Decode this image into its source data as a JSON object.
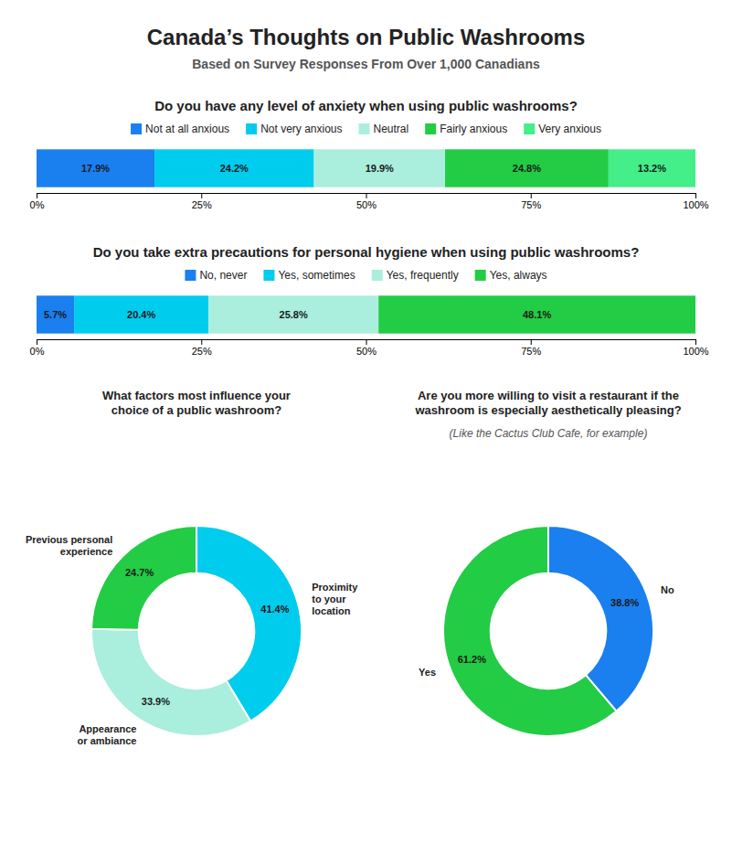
{
  "title": "Canada’s Thoughts on Public Washrooms",
  "subtitle": "Based on Survey Responses From Over 1,000 Canadians",
  "chart_data": [
    {
      "type": "bar",
      "orientation": "horizontal",
      "stacked": true,
      "data_labels": true,
      "title": "Do you have any level of anxiety when using public washrooms?",
      "categories": [
        null
      ],
      "series": [
        {
          "name": "Not at all anxious",
          "color": "#1a7fef",
          "values": [
            17.9
          ],
          "value_labels": [
            "17.9%"
          ]
        },
        {
          "name": "Not very anxious",
          "color": "#00ccee",
          "values": [
            24.2
          ],
          "value_labels": [
            "24.2%"
          ]
        },
        {
          "name": "Neutral",
          "color": "#aaeedd",
          "values": [
            19.9
          ],
          "value_labels": [
            "19.9%"
          ]
        },
        {
          "name": "Fairly anxious",
          "color": "#22cc44",
          "values": [
            24.8
          ],
          "value_labels": [
            "24.8%"
          ]
        },
        {
          "name": "Very anxious",
          "color": "#44ee88",
          "values": [
            13.2
          ],
          "value_labels": [
            "13.2%"
          ]
        }
      ],
      "xlim": [
        0,
        100
      ],
      "xticks": [
        {
          "value": 0,
          "label": "0%"
        },
        {
          "value": 25,
          "label": "25%"
        },
        {
          "value": 50,
          "label": "50%"
        },
        {
          "value": 75,
          "label": "75%"
        },
        {
          "value": 100,
          "label": "100%"
        }
      ],
      "grid": false,
      "legend": "top"
    },
    {
      "type": "bar",
      "orientation": "horizontal",
      "stacked": true,
      "data_labels": true,
      "title": "Do you take extra precautions for personal hygiene when using public washrooms?",
      "categories": [
        null
      ],
      "series": [
        {
          "name": "No, never",
          "color": "#1a7fef",
          "values": [
            5.7
          ],
          "value_labels": [
            "5.7%"
          ]
        },
        {
          "name": "Yes, sometimes",
          "color": "#00ccee",
          "values": [
            20.4
          ],
          "value_labels": [
            "20.4%"
          ]
        },
        {
          "name": "Yes, frequently",
          "color": "#aaeedd",
          "values": [
            25.8
          ],
          "value_labels": [
            "25.8%"
          ]
        },
        {
          "name": "Yes, always",
          "color": "#22cc44",
          "values": [
            48.1
          ],
          "value_labels": [
            "48.1%"
          ]
        }
      ],
      "xlim": [
        0,
        100
      ],
      "xticks": [
        {
          "value": 0,
          "label": "0%"
        },
        {
          "value": 25,
          "label": "25%"
        },
        {
          "value": 50,
          "label": "50%"
        },
        {
          "value": 75,
          "label": "75%"
        },
        {
          "value": 100,
          "label": "100%"
        }
      ],
      "grid": false,
      "legend": "top"
    },
    {
      "type": "donut",
      "data_labels": true,
      "title": "What factors most influence your\nchoice of a public washroom?",
      "categories": [
        "Proximity\nto your\nlocation",
        "Appearance\nor ambiance",
        "Previous personal\nexperience"
      ],
      "values": [
        41.4,
        33.9,
        24.7
      ],
      "value_labels": [
        "41.4%",
        "33.9%",
        "24.7%"
      ],
      "colors": [
        "#00ccee",
        "#aaeedd",
        "#22cc44"
      ]
    },
    {
      "type": "donut",
      "data_labels": true,
      "title": "Are you more willing to visit a restaurant if the\nwashroom is especially aesthetically pleasing?",
      "subtitle": "(Like the Cactus Club Cafe, for example)",
      "categories": [
        "No",
        "Yes"
      ],
      "values": [
        38.8,
        61.2
      ],
      "value_labels": [
        "38.8%",
        "61.2%"
      ],
      "colors": [
        "#1a7fef",
        "#22cc44"
      ]
    }
  ]
}
